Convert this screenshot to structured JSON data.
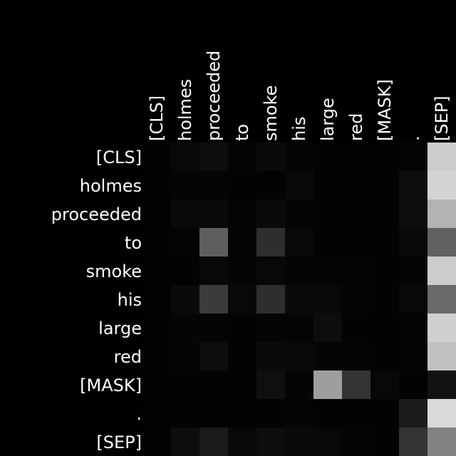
{
  "chart_data": {
    "type": "heatmap",
    "title": "",
    "xlabel": "",
    "ylabel": "",
    "x_tokens": [
      "[CLS]",
      "holmes",
      "proceeded",
      "to",
      "smoke",
      "his",
      "large",
      "red",
      "[MASK]",
      ".",
      "[SEP]"
    ],
    "y_tokens": [
      "[CLS]",
      "holmes",
      "proceeded",
      "to",
      "smoke",
      "his",
      "large",
      "red",
      "[MASK]",
      ".",
      "[SEP]"
    ],
    "value_range": [
      0,
      1
    ],
    "colormap": "grayscale (black = 0, white = 1)",
    "grid": false,
    "legend": "none",
    "values": [
      [
        0.01,
        0.03,
        0.05,
        0.02,
        0.04,
        0.02,
        0.01,
        0.01,
        0.01,
        0.02,
        0.8
      ],
      [
        0.01,
        0.02,
        0.02,
        0.01,
        0.01,
        0.03,
        0.01,
        0.01,
        0.01,
        0.05,
        0.83
      ],
      [
        0.01,
        0.04,
        0.04,
        0.02,
        0.04,
        0.02,
        0.01,
        0.01,
        0.01,
        0.05,
        0.7
      ],
      [
        0.01,
        0.02,
        0.37,
        0.02,
        0.18,
        0.03,
        0.01,
        0.01,
        0.01,
        0.03,
        0.38
      ],
      [
        0.01,
        0.01,
        0.03,
        0.02,
        0.03,
        0.02,
        0.02,
        0.02,
        0.01,
        0.02,
        0.8
      ],
      [
        0.01,
        0.04,
        0.23,
        0.03,
        0.18,
        0.04,
        0.03,
        0.02,
        0.01,
        0.03,
        0.41
      ],
      [
        0.01,
        0.02,
        0.02,
        0.01,
        0.02,
        0.02,
        0.05,
        0.01,
        0.01,
        0.02,
        0.81
      ],
      [
        0.01,
        0.02,
        0.05,
        0.01,
        0.04,
        0.03,
        0.02,
        0.02,
        0.01,
        0.02,
        0.76
      ],
      [
        0.01,
        0.01,
        0.01,
        0.01,
        0.06,
        0.02,
        0.62,
        0.2,
        0.03,
        0.01,
        0.07
      ],
      [
        0.01,
        0.01,
        0.01,
        0.01,
        0.01,
        0.02,
        0.01,
        0.01,
        0.01,
        0.11,
        0.85
      ],
      [
        0.01,
        0.05,
        0.1,
        0.03,
        0.05,
        0.04,
        0.03,
        0.02,
        0.01,
        0.2,
        0.51
      ]
    ]
  }
}
